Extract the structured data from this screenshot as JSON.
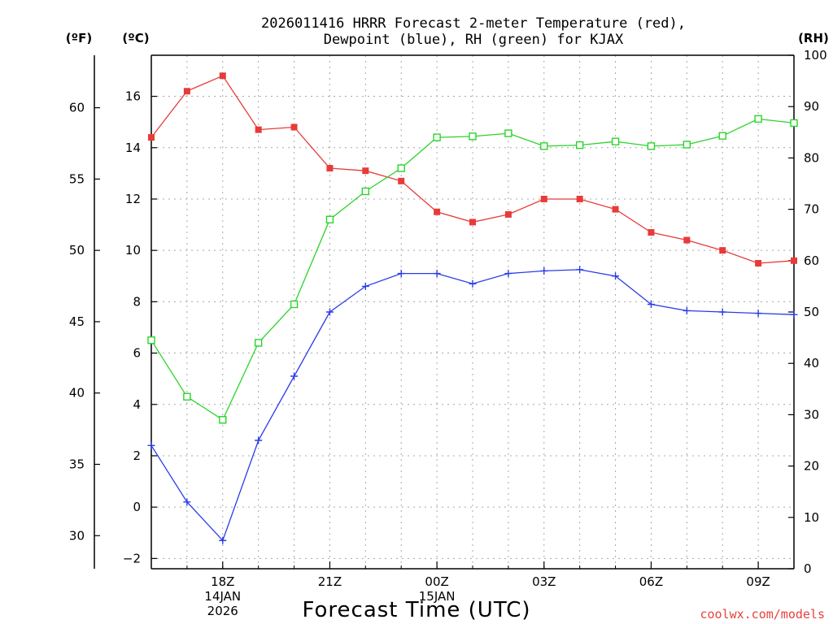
{
  "chart_data": {
    "type": "line",
    "title": [
      "2026011416 HRRR Forecast 2-meter Temperature (red),",
      "Dewpoint (blue), RH (green) for KJAX"
    ],
    "xlabel": "Forecast Time (UTC)",
    "watermark": "coolwx.com/models",
    "units": {
      "fahrenheit": "(ºF)",
      "celsius": "(ºC)",
      "rh": "(RH)"
    },
    "x": [
      16,
      17,
      18,
      19,
      20,
      21,
      22,
      23,
      24,
      25,
      26,
      27,
      28,
      29,
      30,
      31,
      32,
      33,
      34
    ],
    "xlim": [
      16,
      34
    ],
    "x_ticks": [
      {
        "x": 18,
        "lines": [
          "18Z",
          "14JAN",
          "2026"
        ]
      },
      {
        "x": 21,
        "lines": [
          "21Z"
        ]
      },
      {
        "x": 24,
        "lines": [
          "00Z",
          "15JAN"
        ]
      },
      {
        "x": 27,
        "lines": [
          "03Z"
        ]
      },
      {
        "x": 30,
        "lines": [
          "06Z"
        ]
      },
      {
        "x": 33,
        "lines": [
          "09Z"
        ]
      }
    ],
    "ylim_c": [
      -2.4,
      17.6
    ],
    "yticks_c": [
      -2,
      0,
      2,
      4,
      6,
      8,
      10,
      12,
      14,
      16
    ],
    "yticks_f": [
      30,
      35,
      40,
      45,
      50,
      55,
      60
    ],
    "ylim_rh": [
      0,
      100
    ],
    "yticks_rh": [
      0,
      10,
      20,
      30,
      40,
      50,
      60,
      70,
      80,
      90,
      100
    ],
    "series": [
      {
        "name": "Temperature",
        "axis": "celsius",
        "color": "#e83a3a",
        "marker": "filled-square",
        "values": [
          14.4,
          16.2,
          16.8,
          14.7,
          14.8,
          13.2,
          13.1,
          12.7,
          11.5,
          11.1,
          11.4,
          12.0,
          12.0,
          11.6,
          10.7,
          10.4,
          10.0,
          9.5,
          9.6
        ]
      },
      {
        "name": "Dewpoint",
        "axis": "celsius",
        "color": "#2a3ce8",
        "marker": "plus",
        "values": [
          2.4,
          0.2,
          -1.3,
          2.6,
          5.1,
          7.6,
          8.6,
          9.1,
          9.1,
          8.7,
          9.1,
          9.2,
          9.25,
          9.0,
          7.9,
          7.65,
          7.6,
          7.55,
          7.5
        ]
      },
      {
        "name": "RH",
        "axis": "rh",
        "color": "#2ad42a",
        "marker": "open-square",
        "values": [
          44.5,
          33.5,
          29,
          44,
          51.5,
          68,
          73.5,
          78,
          84,
          84.2,
          84.8,
          82.3,
          82.5,
          83.2,
          82.3,
          82.6,
          84.3,
          87.6,
          86.8
        ]
      }
    ]
  }
}
